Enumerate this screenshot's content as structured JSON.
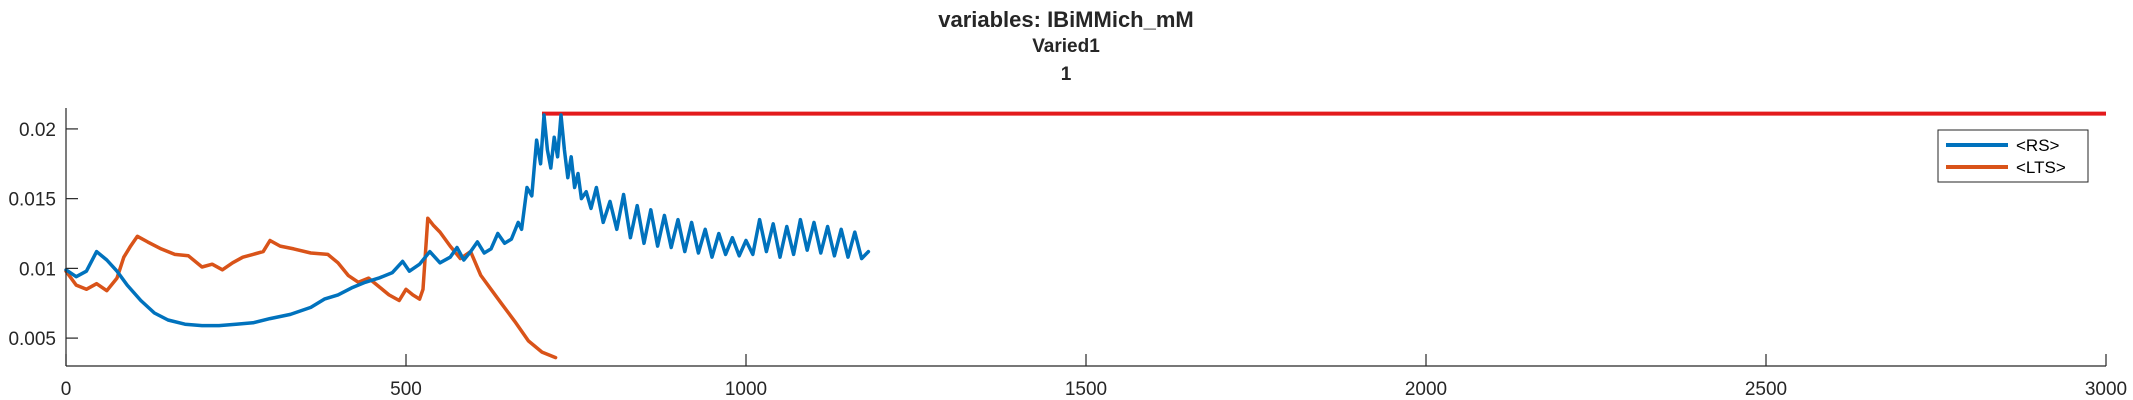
{
  "chart_data": {
    "type": "line",
    "title": "variables: IBiMMich_mM",
    "subtitle": "Varied1",
    "subtitle2": "1",
    "xlabel": "",
    "ylabel": "",
    "xlim": [
      0,
      3000
    ],
    "ylim": [
      0.003,
      0.0215
    ],
    "xticks": [
      0,
      500,
      1000,
      1500,
      2000,
      2500,
      3000
    ],
    "xtick_labels": [
      "0",
      "500",
      "1000",
      "1500",
      "2000",
      "2500",
      "3000"
    ],
    "yticks": [
      0.005,
      0.01,
      0.015,
      0.02
    ],
    "ytick_labels": [
      "0.005",
      "0.01",
      "0.015",
      "0.02"
    ],
    "grid": false,
    "legend_position": "top-right",
    "reference_line": {
      "x_start": 700,
      "x_end": 3000,
      "y": 0.0211,
      "color": "#e31a1c"
    },
    "series": [
      {
        "name": "<RS>",
        "color": "#0072bd",
        "x": [
          0,
          15,
          30,
          45,
          60,
          75,
          90,
          110,
          130,
          150,
          175,
          200,
          225,
          250,
          275,
          300,
          330,
          360,
          380,
          400,
          420,
          440,
          460,
          480,
          495,
          505,
          520,
          535,
          550,
          565,
          575,
          585,
          595,
          605,
          615,
          625,
          635,
          645,
          655,
          665,
          670,
          678,
          685,
          692,
          698,
          703,
          708,
          713,
          718,
          723,
          728,
          733,
          738,
          743,
          748,
          753,
          758,
          765,
          772,
          780,
          790,
          800,
          810,
          820,
          830,
          840,
          850,
          860,
          870,
          880,
          890,
          900,
          910,
          920,
          930,
          940,
          950,
          960,
          970,
          980,
          990,
          1000,
          1010,
          1020,
          1030,
          1040,
          1050,
          1060,
          1070,
          1080,
          1090,
          1100,
          1110,
          1120,
          1130,
          1140,
          1150,
          1160,
          1170,
          1180
        ],
        "y": [
          0.0099,
          0.0094,
          0.0098,
          0.0112,
          0.0106,
          0.0098,
          0.0088,
          0.0077,
          0.0068,
          0.0063,
          0.006,
          0.0059,
          0.0059,
          0.006,
          0.0061,
          0.0064,
          0.0067,
          0.0072,
          0.0078,
          0.0081,
          0.0086,
          0.009,
          0.0093,
          0.0097,
          0.0105,
          0.0098,
          0.0103,
          0.0112,
          0.0104,
          0.0108,
          0.0115,
          0.0106,
          0.0112,
          0.0119,
          0.0111,
          0.0114,
          0.0125,
          0.0118,
          0.0121,
          0.0133,
          0.0128,
          0.0158,
          0.0152,
          0.0192,
          0.0175,
          0.021,
          0.0185,
          0.0172,
          0.0194,
          0.018,
          0.021,
          0.0185,
          0.0165,
          0.018,
          0.0158,
          0.0168,
          0.015,
          0.0155,
          0.0143,
          0.0158,
          0.0133,
          0.0148,
          0.0128,
          0.0153,
          0.0122,
          0.0145,
          0.0118,
          0.0142,
          0.0116,
          0.0138,
          0.0115,
          0.0135,
          0.0112,
          0.0133,
          0.0111,
          0.0128,
          0.0108,
          0.0125,
          0.011,
          0.0122,
          0.0109,
          0.012,
          0.011,
          0.0135,
          0.0112,
          0.0132,
          0.0108,
          0.013,
          0.011,
          0.0135,
          0.0113,
          0.0133,
          0.0111,
          0.013,
          0.0109,
          0.0128,
          0.0108,
          0.0126,
          0.0107,
          0.0112
        ]
      },
      {
        "name": "<LTS>",
        "color": "#d95319",
        "x": [
          0,
          15,
          30,
          45,
          60,
          75,
          85,
          95,
          105,
          120,
          140,
          160,
          180,
          200,
          215,
          230,
          245,
          260,
          275,
          290,
          300,
          315,
          335,
          360,
          385,
          400,
          415,
          430,
          445,
          460,
          475,
          490,
          500,
          510,
          520,
          525,
          532,
          540,
          550,
          565,
          580,
          595,
          610,
          625,
          640,
          660,
          680,
          700,
          720
        ],
        "y": [
          0.0098,
          0.0088,
          0.0085,
          0.0089,
          0.0084,
          0.0093,
          0.0108,
          0.0116,
          0.0123,
          0.0119,
          0.0114,
          0.011,
          0.0109,
          0.0101,
          0.0103,
          0.0099,
          0.0104,
          0.0108,
          0.011,
          0.0112,
          0.012,
          0.0116,
          0.0114,
          0.0111,
          0.011,
          0.0104,
          0.0095,
          0.009,
          0.0093,
          0.0087,
          0.0081,
          0.0077,
          0.0085,
          0.0081,
          0.0078,
          0.0085,
          0.0136,
          0.0131,
          0.0126,
          0.0116,
          0.0107,
          0.0112,
          0.0095,
          0.0085,
          0.0075,
          0.0062,
          0.0048,
          0.004,
          0.0036
        ]
      }
    ]
  }
}
